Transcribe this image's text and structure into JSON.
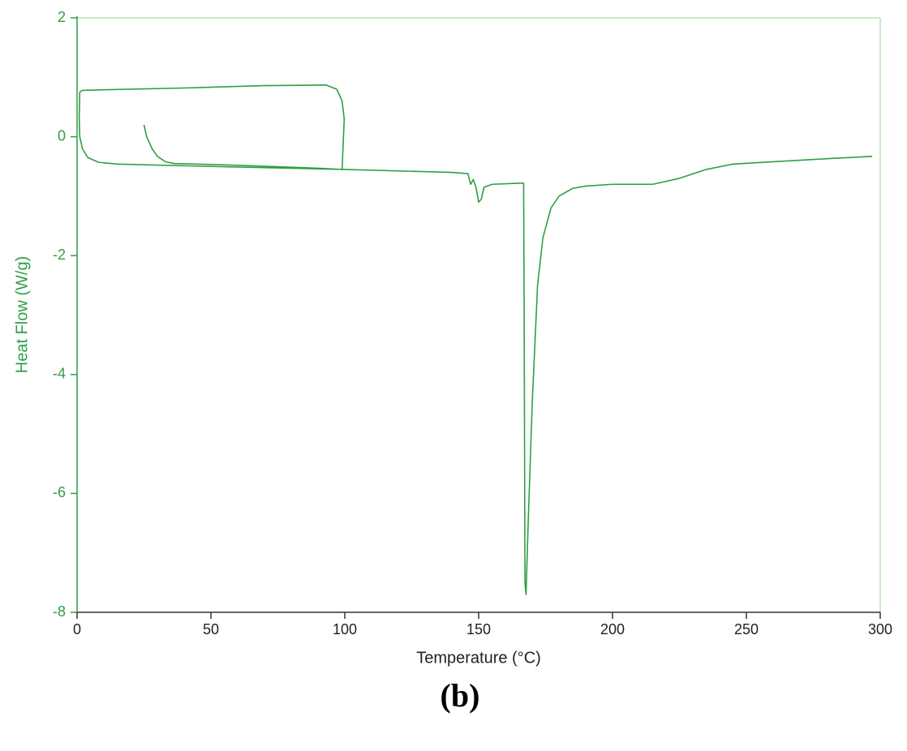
{
  "chart_data": {
    "type": "line",
    "x_label": "Temperature (°C)",
    "y_label": "Heat Flow (W/g)",
    "caption": "(b)",
    "xlim": [
      0,
      300
    ],
    "xticks": [
      0,
      50,
      100,
      150,
      200,
      250,
      300
    ],
    "ylim": [
      -8,
      2
    ],
    "yticks": [
      -8,
      -6,
      -4,
      -2,
      0,
      2
    ],
    "series": [
      {
        "color": "#2f9e44",
        "x": [
          25,
          26,
          28,
          30,
          33,
          36,
          60,
          90,
          99,
          99.5,
          99.8,
          99,
          97,
          93,
          70,
          40,
          10,
          2,
          1,
          0.8,
          1,
          2,
          4,
          8,
          15,
          50,
          100,
          140,
          146,
          147,
          148,
          149,
          150,
          151,
          152,
          155,
          166,
          166.8,
          167,
          167.3,
          167.7,
          168.5,
          170,
          172,
          174,
          177,
          180,
          185,
          190,
          200,
          215,
          225,
          235,
          245,
          260,
          280,
          297
        ],
        "values": [
          0.2,
          0.0,
          -0.2,
          -0.33,
          -0.42,
          -0.45,
          -0.48,
          -0.53,
          -0.55,
          0,
          0.3,
          0.6,
          0.8,
          0.87,
          0.86,
          0.82,
          0.79,
          0.78,
          0.75,
          0.3,
          0,
          -0.2,
          -0.35,
          -0.43,
          -0.46,
          -0.5,
          -0.55,
          -0.6,
          -0.62,
          -0.8,
          -0.72,
          -0.85,
          -1.1,
          -1.05,
          -0.85,
          -0.8,
          -0.78,
          -0.78,
          -3,
          -7.5,
          -7.7,
          -6.5,
          -4.5,
          -2.5,
          -1.7,
          -1.2,
          -1,
          -0.87,
          -0.83,
          -0.8,
          -0.8,
          -0.7,
          -0.55,
          -0.46,
          -0.42,
          -0.37,
          -0.33
        ]
      }
    ]
  }
}
